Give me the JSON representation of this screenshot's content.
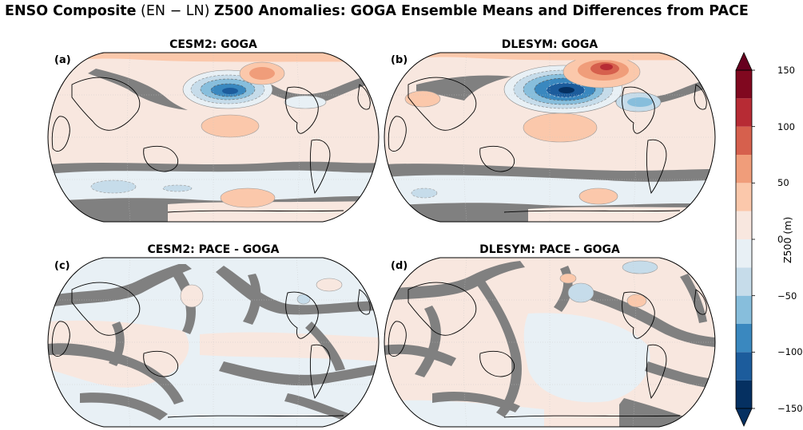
{
  "figure": {
    "title_bold_1": "ENSO Composite",
    "title_normal": " (EN − LN) ",
    "title_bold_2": "Z500 Anomalies: GOGA Ensemble Means and Differences from PACE"
  },
  "panels": [
    {
      "label": "(a)",
      "title": "CESM2: GOGA"
    },
    {
      "label": "(b)",
      "title": "DLESYM: GOGA"
    },
    {
      "label": "(c)",
      "title": "CESM2: PACE - GOGA"
    },
    {
      "label": "(d)",
      "title": "DLESYM: PACE - GOGA"
    }
  ],
  "colorbar": {
    "label": "Z500 (m)",
    "ticks": [
      "150",
      "100",
      "50",
      "0",
      "−50",
      "−100",
      "−150"
    ],
    "levels": [
      -150,
      -125,
      -100,
      -75,
      -50,
      -25,
      0,
      25,
      50,
      75,
      100,
      125,
      150
    ],
    "colors": [
      "#053061",
      "#1c5c9c",
      "#3a88bf",
      "#87bedc",
      "#c6dcea",
      "#e8f0f5",
      "#f8e7df",
      "#fbc8ab",
      "#f09d7a",
      "#d6604d",
      "#b72b34",
      "#80081f"
    ],
    "extend": "both",
    "insignificant_color": "#808080"
  },
  "chart_data": {
    "type": "heatmap",
    "projection": "Robinson (Pacific-centered)",
    "variable": "Z500 anomaly (m)",
    "colorbar_range": [
      -150,
      150
    ],
    "panels": [
      {
        "id": "a",
        "model": "CESM2",
        "field": "GOGA",
        "min_approx": -100,
        "max_approx": 75
      },
      {
        "id": "b",
        "model": "DLESYM",
        "field": "GOGA",
        "min_approx": -150,
        "max_approx": 125
      },
      {
        "id": "c",
        "model": "CESM2",
        "field": "PACE - GOGA",
        "min_approx": -25,
        "max_approx": 25
      },
      {
        "id": "d",
        "model": "DLESYM",
        "field": "PACE - GOGA",
        "min_approx": -50,
        "max_approx": 25
      }
    ]
  }
}
